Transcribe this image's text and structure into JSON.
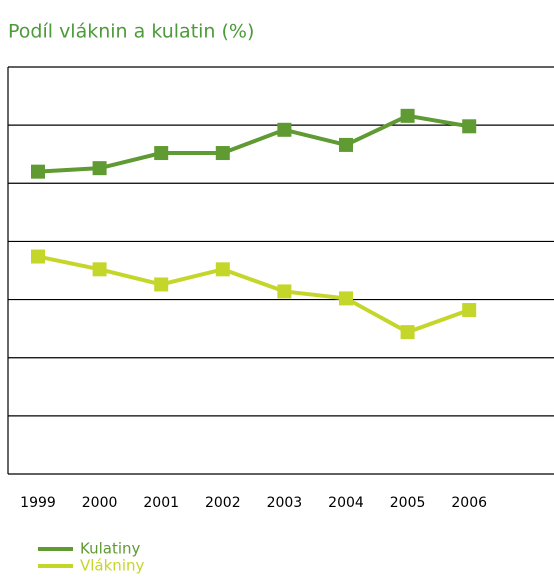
{
  "chart_data": {
    "type": "line",
    "title": "Podíl vláknin a kulatin (%)",
    "categories": [
      "1999",
      "2000",
      "2001",
      "2002",
      "2003",
      "2004",
      "2005",
      "2006"
    ],
    "series": [
      {
        "name": "Kulatiny",
        "color": "#5f9a32",
        "values": [
          56.0,
          56.3,
          57.6,
          57.6,
          59.6,
          58.3,
          60.8,
          59.9
        ]
      },
      {
        "name": "Vlákniny",
        "color": "#c5d62b",
        "values": [
          48.7,
          47.6,
          46.3,
          47.6,
          45.7,
          45.1,
          42.2,
          44.1
        ]
      }
    ],
    "ylim": [
      30,
      65
    ],
    "yticks": [
      30,
      35,
      40,
      45,
      50,
      55,
      60,
      65
    ],
    "grid": true
  }
}
